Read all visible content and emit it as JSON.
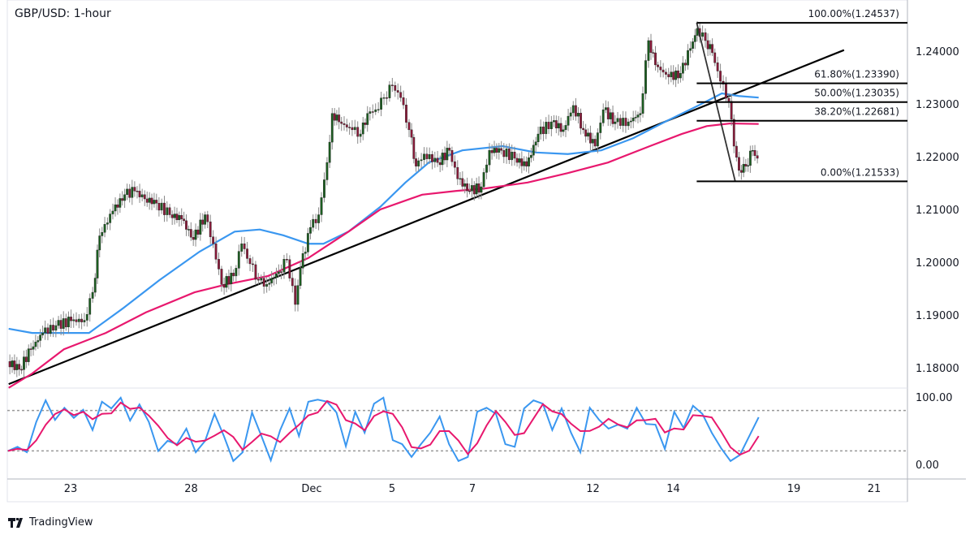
{
  "title": "GBP/USD: 1-hour",
  "brand": "TradingView",
  "colors": {
    "bull": "#1b5e20",
    "bear": "#8b1a3a",
    "wick": "#888888",
    "sma_fast": "#3a97f0",
    "sma_slow": "#e8186e",
    "trendline": "#000000",
    "stoch_k": "#3a97f0",
    "stoch_d": "#e8186e"
  },
  "chart_data": [
    {
      "type": "candlestick",
      "symbol": "GBP/USD",
      "timeframe": "1-hour",
      "ylim": [
        1.175,
        1.248
      ],
      "y_ticks": [
        "1.24000",
        "1.23000",
        "1.22000",
        "1.21000",
        "1.20000",
        "1.19000",
        "1.18000"
      ],
      "x_ticks": [
        {
          "date": "Nov 23",
          "label": "23"
        },
        {
          "date": "Nov 28",
          "label": "28"
        },
        {
          "date": "Dec 1",
          "label": "Dec"
        },
        {
          "date": "Dec 5",
          "label": "5"
        },
        {
          "date": "Dec 7",
          "label": "7"
        },
        {
          "date": "Dec 12",
          "label": "12"
        },
        {
          "date": "Dec 14",
          "label": "14"
        },
        {
          "date": "Dec 19",
          "label": "19"
        },
        {
          "date": "Dec 21",
          "label": "21"
        }
      ],
      "closes": [
        [
          "Nov 21 11:00",
          1.1812
        ],
        [
          "Nov 21 18:00",
          1.1797
        ],
        [
          "Nov 22 01:00",
          1.1835
        ],
        [
          "Nov 22 08:00",
          1.1866
        ],
        [
          "Nov 22 16:00",
          1.188
        ],
        [
          "Nov 23 01:00",
          1.1889
        ],
        [
          "Nov 23 09:00",
          1.189
        ],
        [
          "Nov 23 14:00",
          1.1943
        ],
        [
          "Nov 23 18:00",
          1.205
        ],
        [
          "Nov 24 02:00",
          1.2097
        ],
        [
          "Nov 24 09:00",
          1.2128
        ],
        [
          "Nov 24 15:00",
          1.2135
        ],
        [
          "Nov 24 21:00",
          1.212
        ],
        [
          "Nov 25 04:00",
          1.2112
        ],
        [
          "Nov 25 12:00",
          1.209
        ],
        [
          "Nov 25 19:00",
          1.2082
        ],
        [
          "Nov 28 02:00",
          1.2043
        ],
        [
          "Nov 28 09:00",
          1.209
        ],
        [
          "Nov 28 14:00",
          1.2035
        ],
        [
          "Nov 28 19:00",
          1.1958
        ],
        [
          "Nov 29 02:00",
          1.1974
        ],
        [
          "Nov 29 07:00",
          1.2035
        ],
        [
          "Nov 29 12:00",
          1.1997
        ],
        [
          "Nov 29 17:00",
          1.1966
        ],
        [
          "Nov 29 22:00",
          1.1958
        ],
        [
          "Nov 30 05:00",
          1.1982
        ],
        [
          "Nov 30 10:00",
          1.2005
        ],
        [
          "Nov 30 15:00",
          1.192
        ],
        [
          "Nov 30 18:00",
          1.1989
        ],
        [
          "Dec 1 00:00",
          1.2066
        ],
        [
          "Dec 1 05:00",
          1.209
        ],
        [
          "Dec 1 10:00",
          1.2189
        ],
        [
          "Dec 1 13:00",
          1.2282
        ],
        [
          "Dec 1 17:00",
          1.2266
        ],
        [
          "Dec 2 01:00",
          1.2251
        ],
        [
          "Dec 2 06:00",
          1.2243
        ],
        [
          "Dec 2 10:00",
          1.2282
        ],
        [
          "Dec 2 15:00",
          1.2289
        ],
        [
          "Dec 2 20:00",
          1.2312
        ],
        [
          "Dec 5 01:00",
          1.2335
        ],
        [
          "Dec 5 06:00",
          1.2312
        ],
        [
          "Dec 5 11:00",
          1.2251
        ],
        [
          "Dec 5 15:00",
          1.2182
        ],
        [
          "Dec 5 20:00",
          1.2205
        ],
        [
          "Dec 6 04:00",
          1.2189
        ],
        [
          "Dec 6 11:00",
          1.2212
        ],
        [
          "Dec 6 16:00",
          1.2158
        ],
        [
          "Dec 6 23:00",
          1.2135
        ],
        [
          "Dec 7 06:00",
          1.2143
        ],
        [
          "Dec 7 11:00",
          1.2212
        ],
        [
          "Dec 7 18:00",
          1.2212
        ],
        [
          "Dec 8 02:00",
          1.2197
        ],
        [
          "Dec 8 09:00",
          1.2182
        ],
        [
          "Dec 8 16:00",
          1.2243
        ],
        [
          "Dec 9 00:00",
          1.2266
        ],
        [
          "Dec 9 07:00",
          1.2251
        ],
        [
          "Dec 9 13:00",
          1.2297
        ],
        [
          "Dec 9 19:00",
          1.2251
        ],
        [
          "Dec 12 02:00",
          1.222
        ],
        [
          "Dec 12 07:00",
          1.2289
        ],
        [
          "Dec 12 14:00",
          1.2266
        ],
        [
          "Dec 12 22:00",
          1.2266
        ],
        [
          "Dec 13 05:00",
          1.2282
        ],
        [
          "Dec 13 10:00",
          1.242
        ],
        [
          "Dec 13 14:00",
          1.2374
        ],
        [
          "Dec 13 22:00",
          1.2351
        ],
        [
          "Dec 14 05:00",
          1.2358
        ],
        [
          "Dec 14 11:00",
          1.2405
        ],
        [
          "Dec 14 15:00",
          1.2443
        ],
        [
          "Dec 14 20:00",
          1.242
        ],
        [
          "Dec 15 00:00",
          1.2397
        ],
        [
          "Dec 15 05:00",
          1.2343
        ],
        [
          "Dec 15 10:00",
          1.2305
        ],
        [
          "Dec 15 13:00",
          1.222
        ],
        [
          "Dec 15 16:00",
          1.2174
        ],
        [
          "Dec 15 20:00",
          1.2182
        ],
        [
          "Dec 16 00:00",
          1.2212
        ],
        [
          "Dec 16 03:00",
          1.2197
        ]
      ],
      "moving_averages": [
        {
          "color": "#3a97f0",
          "points": [
            [
              "Nov 21 11:00",
              1.1874
            ],
            [
              "Nov 22 01:00",
              1.1866
            ],
            [
              "Nov 23 11:00",
              1.1866
            ],
            [
              "Nov 24 07:00",
              1.1912
            ],
            [
              "Nov 25 05:00",
              1.1966
            ],
            [
              "Nov 28 05:00",
              1.202
            ],
            [
              "Nov 29 02:00",
              1.2058
            ],
            [
              "Nov 29 17:00",
              1.2062
            ],
            [
              "Nov 30 07:00",
              1.2051
            ],
            [
              "Nov 30 22:00",
              1.2035
            ],
            [
              "Dec 1 07:00",
              1.2035
            ],
            [
              "Dec 1 22:00",
              1.2058
            ],
            [
              "Dec 2 17:00",
              1.2105
            ],
            [
              "Dec 5 08:00",
              1.2151
            ],
            [
              "Dec 5 22:00",
              1.2189
            ],
            [
              "Dec 6 18:00",
              1.2212
            ],
            [
              "Dec 7 18:00",
              1.222
            ],
            [
              "Dec 8 14:00",
              1.2208
            ],
            [
              "Dec 9 09:00",
              1.2205
            ],
            [
              "Dec 12 05:00",
              1.2212
            ],
            [
              "Dec 13 00:00",
              1.2235
            ],
            [
              "Dec 13 19:00",
              1.2266
            ],
            [
              "Dec 14 15:00",
              1.2297
            ],
            [
              "Dec 15 05:00",
              1.232
            ],
            [
              "Dec 15 15:00",
              1.2315
            ],
            [
              "Dec 16 03:00",
              1.2312
            ]
          ]
        },
        {
          "color": "#e8186e",
          "points": [
            [
              "Nov 21 11:00",
              1.1762
            ],
            [
              "Nov 22 01:00",
              1.1789
            ],
            [
              "Nov 22 20:00",
              1.1835
            ],
            [
              "Nov 23 21:00",
              1.1866
            ],
            [
              "Nov 24 21:00",
              1.1905
            ],
            [
              "Nov 28 02:00",
              1.1943
            ],
            [
              "Nov 28 21:00",
              1.1958
            ],
            [
              "Nov 29 22:00",
              1.1974
            ],
            [
              "Nov 30 22:00",
              1.2008
            ],
            [
              "Dec 1 22:00",
              1.2058
            ],
            [
              "Dec 2 17:00",
              1.21
            ],
            [
              "Dec 5 18:00",
              1.2128
            ],
            [
              "Dec 6 14:00",
              1.2135
            ],
            [
              "Dec 7 08:00",
              1.214
            ],
            [
              "Dec 8 09:00",
              1.2151
            ],
            [
              "Dec 9 09:00",
              1.2169
            ],
            [
              "Dec 12 09:00",
              1.2189
            ],
            [
              "Dec 13 10:00",
              1.222
            ],
            [
              "Dec 14 05:00",
              1.2243
            ],
            [
              "Dec 14 20:00",
              1.2258
            ],
            [
              "Dec 15 10:00",
              1.2263
            ],
            [
              "Dec 16 03:00",
              1.2262
            ]
          ]
        }
      ],
      "trendline": [
        [
          "Nov 21 11:00",
          1.1769
        ],
        [
          "Dec 20 06:00",
          1.2402
        ]
      ],
      "fib_anchor": [
        [
          "Dec 14 14:00",
          1.24537
        ],
        [
          "Dec 15 13:00",
          1.21533
        ]
      ],
      "fib_levels": [
        {
          "label": "100.00%(1.24537)",
          "price": 1.24537
        },
        {
          "label": "61.80%(1.23390)",
          "price": 1.2339
        },
        {
          "label": "50.00%(1.23035)",
          "price": 1.23035
        },
        {
          "label": "38.20%(1.22681)",
          "price": 1.22681
        },
        {
          "label": "0.00%(1.21533)",
          "price": 1.21533
        }
      ]
    },
    {
      "type": "line",
      "indicator": "Stochastic",
      "ylim": [
        0,
        100
      ],
      "y_ticks": [
        "100.00",
        "0.00"
      ],
      "bands": [
        80,
        20
      ],
      "k_values": [
        20,
        26,
        18,
        63,
        95,
        66,
        84,
        69,
        81,
        51,
        93,
        83,
        99,
        65,
        89,
        63,
        20,
        35,
        30,
        53,
        18,
        35,
        75,
        42,
        5,
        18,
        77,
        42,
        6,
        51,
        83,
        42,
        93,
        96,
        93,
        77,
        27,
        78,
        47,
        90,
        99,
        36,
        30,
        11,
        30,
        47,
        71,
        30,
        5,
        11,
        78,
        84,
        75,
        30,
        26,
        83,
        95,
        90,
        51,
        83,
        47,
        18,
        84,
        66,
        53,
        59,
        53,
        84,
        60,
        59,
        23,
        78,
        54,
        87,
        75,
        47,
        24,
        5,
        14,
        42,
        70
      ]
    }
  ]
}
